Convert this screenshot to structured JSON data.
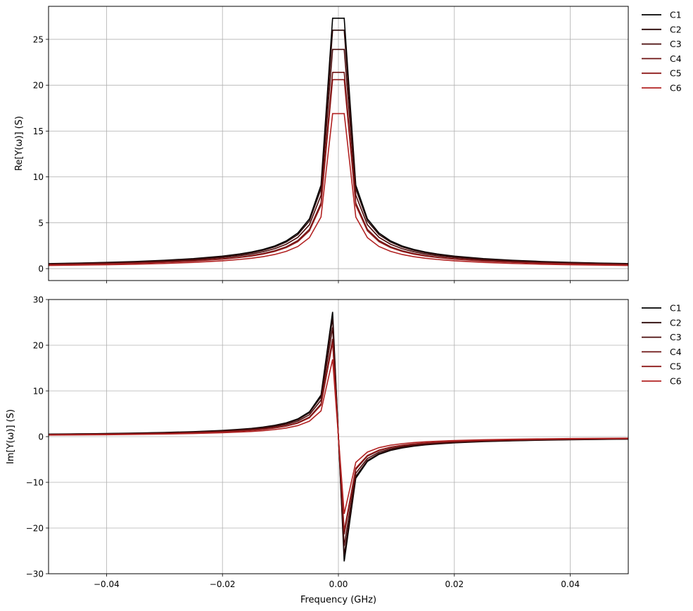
{
  "chart_data": [
    {
      "type": "line",
      "ylabel": "Re[Y(ω)] (S)",
      "xlim": [
        -0.05,
        0.05
      ],
      "ylim": [
        -1.3,
        28.6
      ],
      "xticks": [
        -0.04,
        -0.02,
        0.0,
        0.02,
        0.04
      ],
      "xtick_labels_visible": false,
      "yticks": [
        0,
        5,
        10,
        15,
        20,
        25
      ],
      "ytick_labels": [
        "0",
        "5",
        "10",
        "15",
        "20",
        "25"
      ],
      "grid": true,
      "legend": "outside-top-right",
      "peaks": [
        27.3,
        26.0,
        23.9,
        21.4,
        20.6,
        16.9
      ],
      "x": [
        -0.05,
        -0.045,
        -0.04,
        -0.035,
        -0.03,
        -0.025,
        -0.02,
        -0.017,
        -0.015,
        -0.013,
        -0.011,
        -0.009,
        -0.007,
        -0.005,
        -0.003,
        -0.001,
        0.001,
        0.003,
        0.005,
        0.007,
        0.009,
        0.011,
        0.013,
        0.015,
        0.017,
        0.02,
        0.025,
        0.03,
        0.035,
        0.04,
        0.045,
        0.05
      ],
      "series": [
        {
          "name": "C1",
          "color": "#000000",
          "values": [
            0.55,
            0.6,
            0.68,
            0.78,
            0.91,
            1.09,
            1.36,
            1.6,
            1.81,
            2.09,
            2.47,
            3.02,
            3.88,
            5.43,
            9.1,
            27.3,
            27.3,
            9.1,
            5.43,
            3.88,
            3.02,
            2.47,
            2.09,
            1.81,
            1.6,
            1.36,
            1.09,
            0.91,
            0.78,
            0.68,
            0.6,
            0.55
          ]
        },
        {
          "name": "C2",
          "color": "#2a0707",
          "values": [
            0.52,
            0.58,
            0.65,
            0.74,
            0.87,
            1.04,
            1.3,
            1.53,
            1.73,
            2.0,
            2.36,
            2.89,
            3.71,
            5.2,
            8.7,
            26.0,
            26.0,
            8.7,
            5.2,
            3.71,
            2.89,
            2.36,
            2.0,
            1.73,
            1.53,
            1.3,
            1.04,
            0.87,
            0.74,
            0.65,
            0.58,
            0.52
          ]
        },
        {
          "name": "C3",
          "color": "#4a0c0c",
          "values": [
            0.48,
            0.53,
            0.6,
            0.68,
            0.8,
            0.96,
            1.2,
            1.41,
            1.59,
            1.84,
            2.17,
            2.66,
            3.41,
            4.78,
            8.0,
            23.9,
            23.9,
            8.0,
            4.78,
            3.41,
            2.66,
            2.17,
            1.84,
            1.59,
            1.41,
            1.2,
            0.96,
            0.8,
            0.68,
            0.6,
            0.53,
            0.48
          ]
        },
        {
          "name": "C4",
          "color": "#6e1414",
          "values": [
            0.43,
            0.48,
            0.54,
            0.61,
            0.71,
            0.86,
            1.07,
            1.26,
            1.43,
            1.65,
            1.95,
            2.38,
            3.06,
            4.28,
            7.15,
            21.4,
            21.4,
            7.15,
            4.28,
            3.06,
            2.38,
            1.95,
            1.65,
            1.43,
            1.26,
            1.07,
            0.86,
            0.71,
            0.61,
            0.54,
            0.48,
            0.43
          ]
        },
        {
          "name": "C5",
          "color": "#8e1a1a",
          "values": [
            0.41,
            0.46,
            0.52,
            0.59,
            0.69,
            0.82,
            1.03,
            1.21,
            1.37,
            1.58,
            1.87,
            2.29,
            2.94,
            4.12,
            6.9,
            20.6,
            20.6,
            6.9,
            4.12,
            2.94,
            2.29,
            1.87,
            1.58,
            1.37,
            1.21,
            1.03,
            0.82,
            0.69,
            0.59,
            0.52,
            0.46,
            0.41
          ]
        },
        {
          "name": "C6",
          "color": "#b22222",
          "values": [
            0.34,
            0.38,
            0.42,
            0.48,
            0.56,
            0.68,
            0.85,
            1.0,
            1.13,
            1.3,
            1.54,
            1.88,
            2.41,
            3.38,
            5.63,
            16.9,
            16.9,
            5.63,
            3.38,
            2.41,
            1.88,
            1.54,
            1.3,
            1.13,
            1.0,
            0.85,
            0.68,
            0.56,
            0.48,
            0.42,
            0.38,
            0.34
          ]
        }
      ]
    },
    {
      "type": "line",
      "xlabel": "Frequency (GHz)",
      "ylabel": "Im[Y(ω)] (S)",
      "xlim": [
        -0.05,
        0.05
      ],
      "ylim": [
        -30,
        30
      ],
      "xticks": [
        -0.04,
        -0.02,
        0.0,
        0.02,
        0.04
      ],
      "xtick_labels": [
        "−0.04",
        "−0.02",
        "0.00",
        "0.02",
        "0.04"
      ],
      "yticks": [
        -30,
        -20,
        -10,
        0,
        10,
        20,
        30
      ],
      "ytick_labels": [
        "−30",
        "−20",
        "−10",
        "0",
        "10",
        "20",
        "30"
      ],
      "grid": true,
      "legend": "outside-top-right",
      "x": [
        -0.05,
        -0.045,
        -0.04,
        -0.035,
        -0.03,
        -0.025,
        -0.02,
        -0.017,
        -0.015,
        -0.013,
        -0.011,
        -0.009,
        -0.007,
        -0.005,
        -0.003,
        -0.001,
        0.001,
        0.003,
        0.005,
        0.007,
        0.009,
        0.011,
        0.013,
        0.015,
        0.017,
        0.02,
        0.025,
        0.03,
        0.035,
        0.04,
        0.045,
        0.05
      ],
      "series": [
        {
          "name": "C1",
          "color": "#000000",
          "values": [
            0.55,
            0.6,
            0.68,
            0.78,
            0.91,
            1.09,
            1.36,
            1.6,
            1.81,
            2.09,
            2.47,
            3.02,
            3.88,
            5.43,
            9.1,
            27.3,
            -27.3,
            -9.1,
            -5.43,
            -3.88,
            -3.02,
            -2.47,
            -2.09,
            -1.81,
            -1.6,
            -1.36,
            -1.09,
            -0.91,
            -0.78,
            -0.68,
            -0.6,
            -0.55
          ]
        },
        {
          "name": "C2",
          "color": "#2a0707",
          "values": [
            0.52,
            0.58,
            0.65,
            0.74,
            0.87,
            1.04,
            1.3,
            1.53,
            1.73,
            2.0,
            2.36,
            2.89,
            3.71,
            5.2,
            8.7,
            26.0,
            -26.0,
            -8.7,
            -5.2,
            -3.71,
            -2.89,
            -2.36,
            -2.0,
            -1.73,
            -1.53,
            -1.3,
            -1.04,
            -0.87,
            -0.74,
            -0.65,
            -0.58,
            -0.52
          ]
        },
        {
          "name": "C3",
          "color": "#4a0c0c",
          "values": [
            0.48,
            0.53,
            0.6,
            0.68,
            0.8,
            0.96,
            1.2,
            1.41,
            1.59,
            1.84,
            2.17,
            2.66,
            3.41,
            4.78,
            8.0,
            23.9,
            -23.9,
            -8.0,
            -4.78,
            -3.41,
            -2.66,
            -2.17,
            -1.84,
            -1.59,
            -1.41,
            -1.2,
            -0.96,
            -0.8,
            -0.68,
            -0.6,
            -0.53,
            -0.48
          ]
        },
        {
          "name": "C4",
          "color": "#6e1414",
          "values": [
            0.43,
            0.48,
            0.54,
            0.61,
            0.71,
            0.86,
            1.07,
            1.26,
            1.43,
            1.65,
            1.95,
            2.38,
            3.06,
            4.28,
            7.15,
            21.4,
            -21.4,
            -7.15,
            -4.28,
            -3.06,
            -2.38,
            -1.95,
            -1.65,
            -1.43,
            -1.26,
            -1.07,
            -0.86,
            -0.71,
            -0.61,
            -0.54,
            -0.48,
            -0.43
          ]
        },
        {
          "name": "C5",
          "color": "#8e1a1a",
          "values": [
            0.41,
            0.46,
            0.52,
            0.59,
            0.69,
            0.82,
            1.03,
            1.21,
            1.37,
            1.58,
            1.87,
            2.29,
            2.94,
            4.12,
            6.9,
            20.6,
            -20.6,
            -6.9,
            -4.12,
            -2.94,
            -2.29,
            -1.87,
            -1.58,
            -1.37,
            -1.21,
            -1.03,
            -0.82,
            -0.69,
            -0.59,
            -0.52,
            -0.46,
            -0.41
          ]
        },
        {
          "name": "C6",
          "color": "#b22222",
          "values": [
            0.34,
            0.38,
            0.42,
            0.48,
            0.56,
            0.68,
            0.85,
            1.0,
            1.13,
            1.3,
            1.54,
            1.88,
            2.41,
            3.38,
            5.63,
            16.9,
            -16.9,
            -5.63,
            -3.38,
            -2.41,
            -1.88,
            -1.54,
            -1.3,
            -1.13,
            -1.0,
            -0.85,
            -0.68,
            -0.56,
            -0.48,
            -0.42,
            -0.38,
            -0.34
          ]
        }
      ]
    }
  ]
}
